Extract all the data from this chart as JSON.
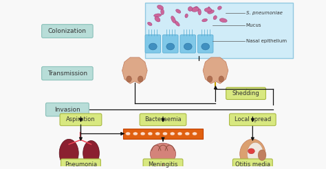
{
  "background_color": "#f8f8f8",
  "label_box_color": "#b8ddd8",
  "label_box_edge": "#88c0b8",
  "green_box_color": "#d8e880",
  "green_box_edge": "#a8b840",
  "nasal_box_color": "#d0ecf8",
  "nasal_box_edge": "#90c8e0",
  "bacteraemia_bar_color": "#e06010",
  "bacteraemia_bar_edge": "#c04000",
  "arrow_color": "#111111",
  "text_color": "#333333",
  "nose_color": "#dda888",
  "nostril_color": "#b07050",
  "lung_color": "#8b2030",
  "lung_edge": "#5a0f1a",
  "brain_color": "#d4837a",
  "brain_edge": "#a05050",
  "ear_outer_color": "#dba070",
  "ear_inner_color": "#e8b890",
  "colonization_label": "Colonization",
  "transmission_label": "Transmission",
  "invasion_label": "Invasion",
  "s_pneumoniae_label": "S. pneumoniae",
  "mucus_label": "Mucus",
  "nasal_epi_label": "Nasal epithelium",
  "shedding_label": "Shedding",
  "aspiration_label": "Aspiration",
  "bacteraemia_label": "Bacteraemia",
  "local_spread_label": "Local spread",
  "pneumonia_label": "Pneumonia",
  "meningitis_label": "Meningitis",
  "otitis_label": "Otitis media"
}
